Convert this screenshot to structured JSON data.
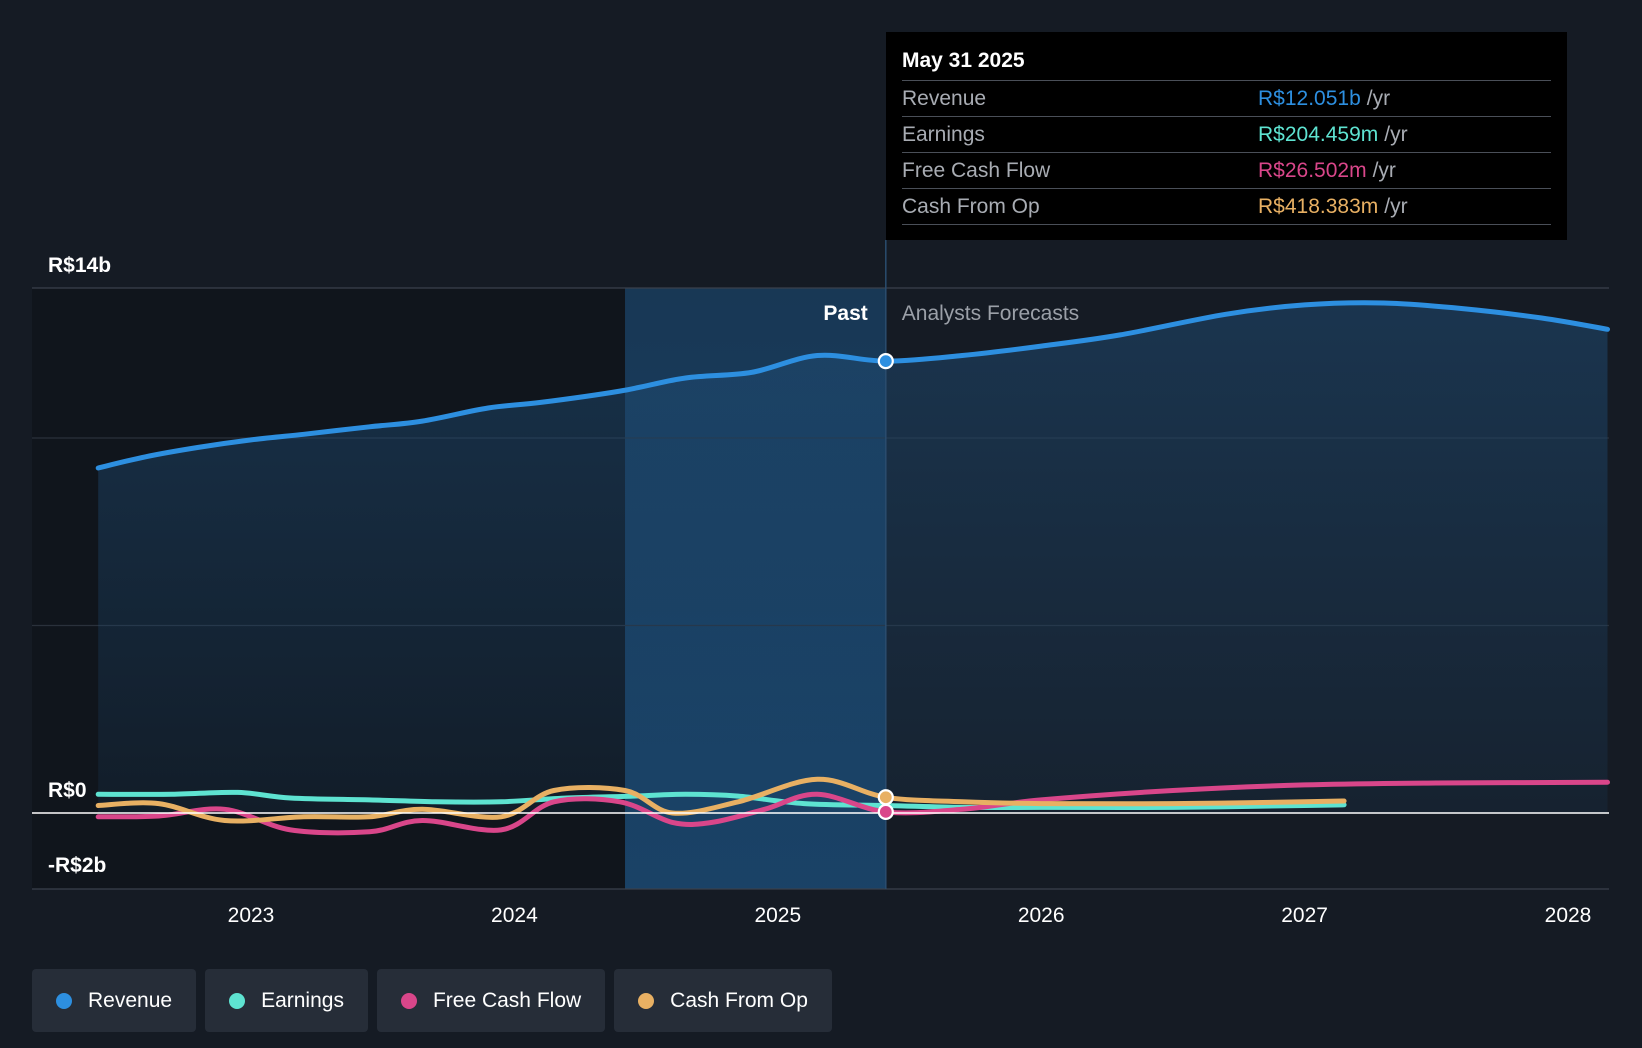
{
  "tooltip": {
    "date": "May 31 2025",
    "rows": [
      {
        "label": "Revenue",
        "value": "R$12.051b",
        "unit": "/yr",
        "color": "#2d8fe0"
      },
      {
        "label": "Earnings",
        "value": "R$204.459m",
        "unit": "/yr",
        "color": "#5ee3d1"
      },
      {
        "label": "Free Cash Flow",
        "value": "R$26.502m",
        "unit": "/yr",
        "color": "#d9468a"
      },
      {
        "label": "Cash From Op",
        "value": "R$418.383m",
        "unit": "/yr",
        "color": "#e8b063"
      }
    ]
  },
  "legend": [
    {
      "label": "Revenue",
      "color": "#2d8fe0"
    },
    {
      "label": "Earnings",
      "color": "#5ee3d1"
    },
    {
      "label": "Free Cash Flow",
      "color": "#d9468a"
    },
    {
      "label": "Cash From Op",
      "color": "#e8b063"
    }
  ],
  "chart_data": {
    "type": "line",
    "y_tick_labels": [
      "R$14b",
      "R$0",
      "-R$2b"
    ],
    "ylim": [
      -2,
      14
    ],
    "y_unit": "R$b",
    "x_tick_labels": [
      "2023",
      "2024",
      "2025",
      "2026",
      "2027",
      "2028"
    ],
    "xlim": [
      2022.4,
      2028.15
    ],
    "past_label": "Past",
    "forecast_label": "Analysts Forecasts",
    "present_x": 2025.41,
    "past_band_start_x": 2024.42,
    "grid": true,
    "legend_position": "bottom-left",
    "series": [
      {
        "name": "Revenue",
        "color": "#2d8fe0",
        "area": true,
        "x": [
          2022.42,
          2022.6,
          2022.8,
          2023.0,
          2023.2,
          2023.45,
          2023.65,
          2023.9,
          2024.1,
          2024.4,
          2024.65,
          2024.9,
          2025.15,
          2025.41,
          2025.7,
          2026.0,
          2026.3,
          2026.7,
          2027.0,
          2027.3,
          2027.6,
          2027.9,
          2028.15
        ],
        "values": [
          9.2,
          9.5,
          9.75,
          9.95,
          10.1,
          10.3,
          10.45,
          10.8,
          10.95,
          11.25,
          11.6,
          11.75,
          12.2,
          12.05,
          12.2,
          12.45,
          12.75,
          13.3,
          13.55,
          13.6,
          13.45,
          13.2,
          12.9
        ]
      },
      {
        "name": "Earnings",
        "color": "#5ee3d1",
        "x": [
          2022.42,
          2022.7,
          2022.95,
          2023.15,
          2023.45,
          2023.7,
          2023.95,
          2024.2,
          2024.45,
          2024.65,
          2024.85,
          2025.1,
          2025.41,
          2025.7,
          2026.0,
          2026.5,
          2027.0,
          2027.15
        ],
        "values": [
          0.5,
          0.5,
          0.55,
          0.4,
          0.35,
          0.3,
          0.3,
          0.4,
          0.45,
          0.5,
          0.45,
          0.25,
          0.2,
          0.15,
          0.15,
          0.15,
          0.2,
          0.22
        ]
      },
      {
        "name": "Free Cash Flow",
        "color": "#d9468a",
        "x": [
          2022.42,
          2022.65,
          2022.9,
          2023.15,
          2023.45,
          2023.65,
          2023.95,
          2024.15,
          2024.4,
          2024.6,
          2024.75,
          2024.95,
          2025.15,
          2025.41,
          2025.7,
          2026.0,
          2026.5,
          2027.0,
          2027.5,
          2028.15
        ],
        "values": [
          -0.1,
          -0.08,
          0.1,
          -0.45,
          -0.5,
          -0.2,
          -0.45,
          0.3,
          0.3,
          -0.25,
          -0.25,
          0.1,
          0.5,
          0.03,
          0.1,
          0.35,
          0.6,
          0.75,
          0.8,
          0.82
        ]
      },
      {
        "name": "Cash From Op",
        "color": "#e8b063",
        "x": [
          2022.42,
          2022.65,
          2022.9,
          2023.2,
          2023.45,
          2023.65,
          2023.95,
          2024.15,
          2024.42,
          2024.6,
          2024.85,
          2025.15,
          2025.41,
          2025.7,
          2026.0,
          2026.5,
          2027.0,
          2027.15
        ],
        "values": [
          0.2,
          0.25,
          -0.2,
          -0.1,
          -0.1,
          0.1,
          -0.1,
          0.6,
          0.6,
          0.0,
          0.3,
          0.9,
          0.42,
          0.3,
          0.25,
          0.25,
          0.3,
          0.32
        ]
      }
    ]
  }
}
